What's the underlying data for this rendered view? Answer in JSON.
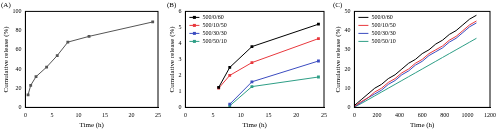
{
  "chart_data": [
    {
      "type": "line",
      "title": "(A)",
      "x_label": "Time (h)",
      "y_label": "Cumulative release (%)",
      "x": [
        0.5,
        1,
        2,
        4,
        6,
        8,
        12,
        24
      ],
      "series": [
        {
          "color": "#555555",
          "marker": "square",
          "line_style": "solid",
          "values": [
            13,
            23,
            32,
            42,
            54,
            68,
            74,
            89
          ]
        }
      ],
      "xlim": [
        0,
        25
      ],
      "xticks": [
        0,
        5,
        10,
        15,
        20,
        25
      ],
      "ylim": [
        0,
        100
      ],
      "yticks": [
        0,
        20,
        40,
        60,
        80,
        100
      ],
      "grid": false
    },
    {
      "type": "line",
      "title": "(B)",
      "x_label": "Time (h)",
      "y_label": "Cumulative release (%)",
      "x": [
        6,
        8,
        12,
        24
      ],
      "series": [
        {
          "name": "500/0/60",
          "color": "#000000",
          "marker": "square",
          "line_style": "solid",
          "values": [
            1.25,
            2.5,
            3.8,
            5.2
          ]
        },
        {
          "name": "500/10/50",
          "color": "#e8383d",
          "marker": "square",
          "line_style": "solid",
          "values": [
            1.2,
            2.0,
            2.8,
            4.3
          ]
        },
        {
          "name": "500/30/30",
          "color": "#3b4cc0",
          "marker": "square",
          "line_style": "solid",
          "values": [
            null,
            0.2,
            1.6,
            2.9
          ]
        },
        {
          "name": "500/50/10",
          "color": "#2e9e86",
          "marker": "square",
          "line_style": "solid",
          "values": [
            null,
            0.1,
            1.3,
            1.9
          ]
        }
      ],
      "xlim": [
        0,
        25
      ],
      "xticks": [
        0,
        5,
        10,
        15,
        20,
        25
      ],
      "ylim": [
        0,
        6
      ],
      "yticks": [
        0,
        1,
        2,
        3,
        4,
        5,
        6
      ],
      "grid": false,
      "legend": "upper left"
    },
    {
      "type": "line",
      "title": "(C)",
      "x_label": "Time (h)",
      "y_label": "Cumulative release (%)",
      "x": [
        0,
        60,
        120,
        180,
        240,
        300,
        360,
        420,
        480,
        540,
        600,
        660,
        720,
        780,
        840,
        900,
        960,
        1020,
        1080
      ],
      "series": [
        {
          "name": "500/0/60",
          "color": "#000000",
          "marker": "none",
          "line_style": "solid",
          "values": [
            1,
            4,
            7,
            10,
            12,
            15,
            17,
            20,
            23,
            25,
            28,
            30,
            33,
            35,
            38,
            40,
            43,
            46,
            48
          ]
        },
        {
          "name": "500/10/50",
          "color": "#e8383d",
          "marker": "none",
          "line_style": "solid",
          "values": [
            0.5,
            3,
            5,
            8,
            10,
            13,
            15,
            18,
            20,
            23,
            25,
            28,
            30,
            32,
            35,
            37,
            40,
            43,
            45
          ]
        },
        {
          "name": "500/30/30",
          "color": "#3b4cc0",
          "marker": "none",
          "line_style": "solid",
          "values": [
            0.3,
            2.5,
            5,
            7,
            9,
            12,
            14,
            17,
            19,
            22,
            24,
            27,
            29,
            31,
            34,
            36,
            39,
            42,
            44
          ]
        },
        {
          "name": "500/50/10",
          "color": "#2e9e86",
          "marker": "none",
          "line_style": "solid",
          "values": [
            0.2,
            2,
            4,
            6,
            8,
            10,
            12,
            14,
            16,
            18,
            20,
            22,
            24,
            26,
            28,
            30,
            32,
            34,
            36
          ]
        }
      ],
      "xlim": [
        0,
        1200
      ],
      "xticks": [
        0,
        200,
        400,
        600,
        800,
        1000,
        1200
      ],
      "ylim": [
        0,
        50
      ],
      "yticks": [
        0,
        10,
        20,
        30,
        40,
        50
      ],
      "grid": false,
      "legend": "upper left"
    }
  ]
}
